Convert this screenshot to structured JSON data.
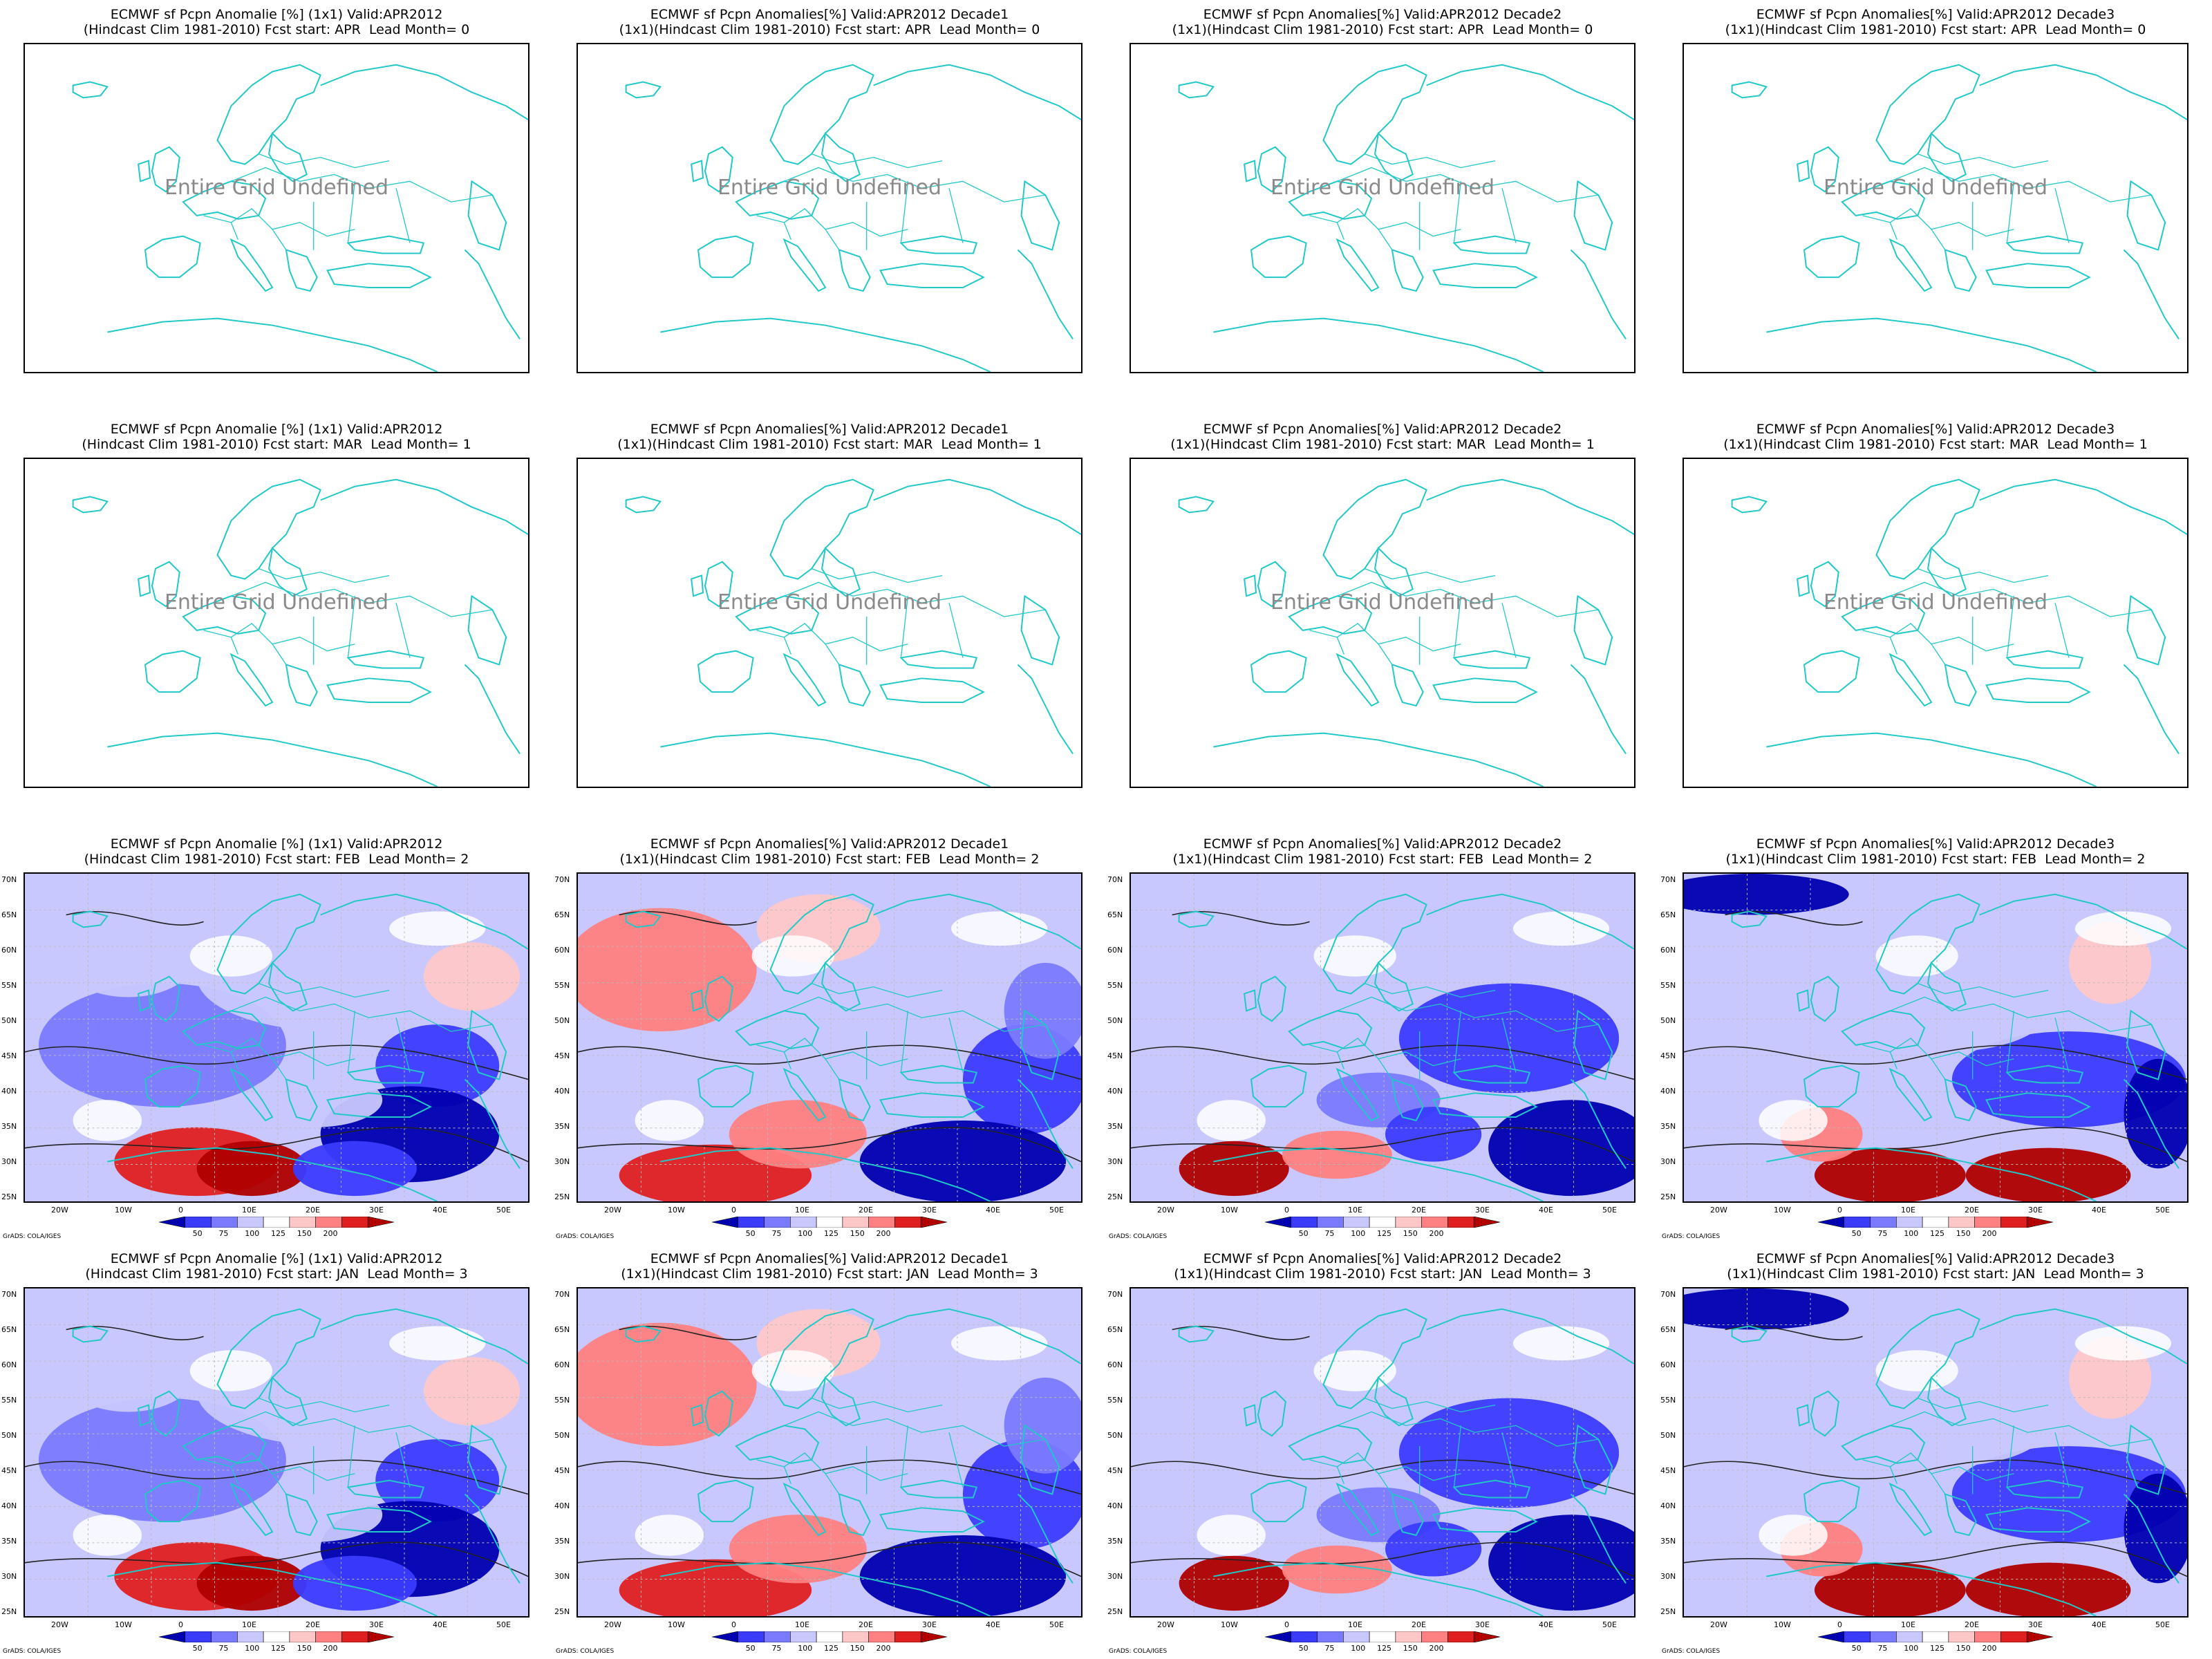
{
  "undefined_text": "Entire Grid Undefined",
  "credit": "GrADS: COLA/IGES",
  "y_ticks": [
    "70N",
    "65N",
    "60N",
    "55N",
    "50N",
    "45N",
    "40N",
    "35N",
    "30N",
    "25N"
  ],
  "x_ticks": [
    "20W",
    "10W",
    "0",
    "10E",
    "20E",
    "30E",
    "40E",
    "50E"
  ],
  "colorbar": {
    "labels": [
      "50",
      "75",
      "100",
      "125",
      "150",
      "200"
    ],
    "colors": [
      "#0000b0",
      "#3b3bff",
      "#7a7aff",
      "#c8c8ff",
      "#ffffff",
      "#ffc8c8",
      "#ff8080",
      "#e02020",
      "#b00000"
    ]
  },
  "land_color": "#20c8c8",
  "rows": [
    {
      "filled": false,
      "panels": [
        {
          "title1": "ECMWF sf Pcpn Anomalie [%] (1x1) Valid:APR2012",
          "title2": "(Hindcast Clim 1981-2010) Fcst start: APR  Lead Month= 0"
        },
        {
          "title1": "ECMWF sf Pcpn Anomalies[%] Valid:APR2012 Decade1",
          "title2": "(1x1)(Hindcast Clim 1981-2010) Fcst start: APR  Lead Month= 0"
        },
        {
          "title1": "ECMWF sf Pcpn Anomalies[%] Valid:APR2012 Decade2",
          "title2": "(1x1)(Hindcast Clim 1981-2010) Fcst start: APR  Lead Month= 0"
        },
        {
          "title1": "ECMWF sf Pcpn Anomalies[%] Valid:APR2012 Decade3",
          "title2": "(1x1)(Hindcast Clim 1981-2010) Fcst start: APR  Lead Month= 0"
        }
      ]
    },
    {
      "filled": false,
      "panels": [
        {
          "title1": "ECMWF sf Pcpn Anomalie [%] (1x1) Valid:APR2012",
          "title2": "(Hindcast Clim 1981-2010) Fcst start: MAR  Lead Month= 1"
        },
        {
          "title1": "ECMWF sf Pcpn Anomalies[%] Valid:APR2012 Decade1",
          "title2": "(1x1)(Hindcast Clim 1981-2010) Fcst start: MAR  Lead Month= 1"
        },
        {
          "title1": "ECMWF sf Pcpn Anomalies[%] Valid:APR2012 Decade2",
          "title2": "(1x1)(Hindcast Clim 1981-2010) Fcst start: MAR  Lead Month= 1"
        },
        {
          "title1": "ECMWF sf Pcpn Anomalies[%] Valid:APR2012 Decade3",
          "title2": "(1x1)(Hindcast Clim 1981-2010) Fcst start: MAR  Lead Month= 1"
        }
      ]
    },
    {
      "filled": true,
      "panels": [
        {
          "title1": "ECMWF sf Pcpn Anomalie [%] (1x1) Valid:APR2012",
          "title2": "(Hindcast Clim 1981-2010) Fcst start: FEB  Lead Month= 2"
        },
        {
          "title1": "ECMWF sf Pcpn Anomalies[%] Valid:APR2012 Decade1",
          "title2": "(1x1)(Hindcast Clim 1981-2010) Fcst start: FEB  Lead Month= 2"
        },
        {
          "title1": "ECMWF sf Pcpn Anomalies[%] Valid:APR2012 Decade2",
          "title2": "(1x1)(Hindcast Clim 1981-2010) Fcst start: FEB  Lead Month= 2"
        },
        {
          "title1": "ECMWF sf Pcpn Anomalies[%] Valid:APR2012 Decade3",
          "title2": "(1x1)(Hindcast Clim 1981-2010) Fcst start: FEB  Lead Month= 2"
        }
      ]
    },
    {
      "filled": true,
      "panels": [
        {
          "title1": "ECMWF sf Pcpn Anomalie [%] (1x1) Valid:APR2012",
          "title2": "(Hindcast Clim 1981-2010) Fcst start: JAN  Lead Month= 3"
        },
        {
          "title1": "ECMWF sf Pcpn Anomalies[%] Valid:APR2012 Decade1",
          "title2": "(1x1)(Hindcast Clim 1981-2010) Fcst start: JAN  Lead Month= 3"
        },
        {
          "title1": "ECMWF sf Pcpn Anomalies[%] Valid:APR2012 Decade2",
          "title2": "(1x1)(Hindcast Clim 1981-2010) Fcst start: JAN  Lead Month= 3"
        },
        {
          "title1": "ECMWF sf Pcpn Anomalies[%] Valid:APR2012 Decade3",
          "title2": "(1x1)(Hindcast Clim 1981-2010) Fcst start: JAN  Lead Month= 3"
        }
      ]
    }
  ]
}
